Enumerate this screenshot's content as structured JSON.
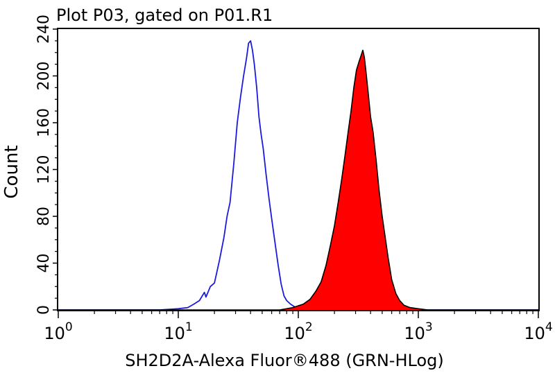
{
  "chart_data": {
    "type": "area",
    "title": "Plot P03, gated on P01.R1",
    "xlabel": "SH2D2A-Alexa Fluor®488 (GRN-HLog)",
    "ylabel": "Count",
    "xscale": "log",
    "xlim": [
      1,
      10000
    ],
    "ylim": [
      0,
      240
    ],
    "x_ticks": [
      {
        "base": "10",
        "exp": "0",
        "value": 1
      },
      {
        "base": "10",
        "exp": "1",
        "value": 10
      },
      {
        "base": "10",
        "exp": "2",
        "value": 100
      },
      {
        "base": "10",
        "exp": "3",
        "value": 1000
      },
      {
        "base": "10",
        "exp": "4",
        "value": 10000
      }
    ],
    "y_ticks": [
      "0",
      "40",
      "80",
      "120",
      "160",
      "200",
      "240"
    ],
    "y_tick_values": [
      0,
      40,
      80,
      120,
      160,
      200,
      240
    ],
    "series": [
      {
        "color": "#1a1adc",
        "style": "outline",
        "points": [
          [
            1,
            0
          ],
          [
            7,
            0
          ],
          [
            10,
            1
          ],
          [
            12,
            2
          ],
          [
            13.5,
            5
          ],
          [
            15,
            8
          ],
          [
            16.5,
            15
          ],
          [
            17,
            11
          ],
          [
            18.5,
            20
          ],
          [
            20,
            23
          ],
          [
            22,
            42
          ],
          [
            24,
            62
          ],
          [
            25.5,
            80
          ],
          [
            27,
            92
          ],
          [
            29,
            125
          ],
          [
            31,
            160
          ],
          [
            33,
            182
          ],
          [
            35,
            200
          ],
          [
            37,
            215
          ],
          [
            38.5,
            228
          ],
          [
            40,
            230
          ],
          [
            41.5,
            222
          ],
          [
            43,
            210
          ],
          [
            45,
            190
          ],
          [
            47,
            165
          ],
          [
            49,
            150
          ],
          [
            51,
            138
          ],
          [
            54,
            115
          ],
          [
            57,
            95
          ],
          [
            60,
            78
          ],
          [
            64,
            57
          ],
          [
            68,
            38
          ],
          [
            72,
            22
          ],
          [
            76,
            12
          ],
          [
            80,
            8
          ],
          [
            86,
            5
          ],
          [
            92,
            3
          ],
          [
            100,
            1
          ],
          [
            110,
            0
          ],
          [
            10000,
            0
          ]
        ]
      },
      {
        "color": "#ff0000",
        "style": "filled",
        "points": [
          [
            1,
            0
          ],
          [
            70,
            0
          ],
          [
            90,
            2
          ],
          [
            110,
            5
          ],
          [
            125,
            9
          ],
          [
            140,
            16
          ],
          [
            155,
            24
          ],
          [
            170,
            38
          ],
          [
            185,
            55
          ],
          [
            200,
            72
          ],
          [
            215,
            92
          ],
          [
            230,
            112
          ],
          [
            245,
            132
          ],
          [
            260,
            152
          ],
          [
            275,
            170
          ],
          [
            290,
            190
          ],
          [
            305,
            205
          ],
          [
            320,
            212
          ],
          [
            335,
            218
          ],
          [
            345,
            222
          ],
          [
            355,
            216
          ],
          [
            365,
            205
          ],
          [
            380,
            188
          ],
          [
            400,
            165
          ],
          [
            420,
            152
          ],
          [
            445,
            128
          ],
          [
            470,
            103
          ],
          [
            500,
            80
          ],
          [
            530,
            62
          ],
          [
            560,
            45
          ],
          [
            600,
            26
          ],
          [
            650,
            14
          ],
          [
            700,
            8
          ],
          [
            760,
            4
          ],
          [
            850,
            2
          ],
          [
            1000,
            1
          ],
          [
            1200,
            0
          ],
          [
            10000,
            0
          ]
        ]
      }
    ]
  }
}
